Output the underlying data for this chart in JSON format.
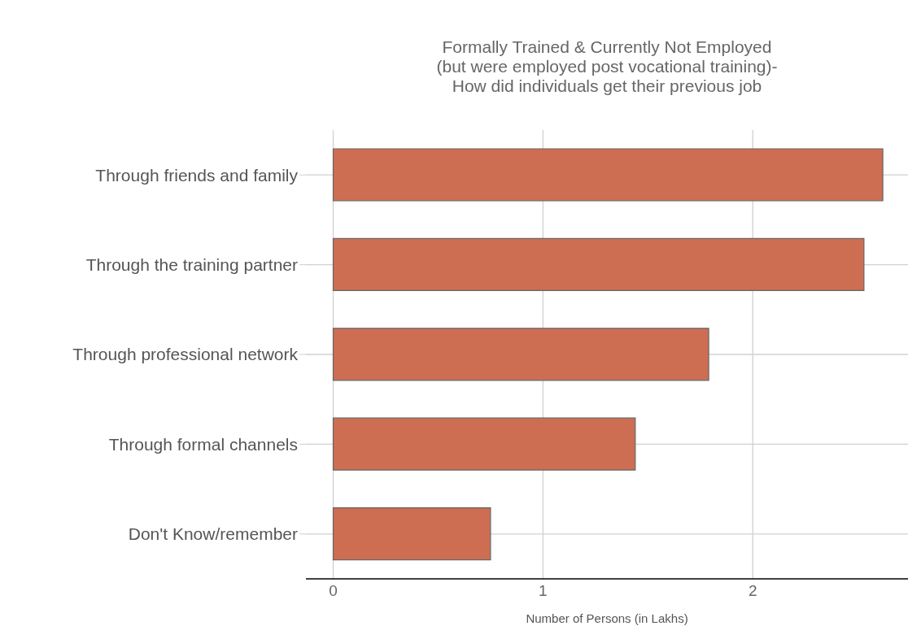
{
  "chart_data": {
    "type": "bar",
    "orientation": "horizontal",
    "title": "Formally Trained & Currently Not Employed\n(but were employed post vocational training)-\nHow did individuals get their previous job",
    "xlabel": "Number of Persons (in Lakhs)",
    "categories": [
      "Through friends and family",
      "Through the training partner",
      "Through professional network",
      "Through formal channels",
      "Don't Know/remember"
    ],
    "values": [
      2.62,
      2.53,
      1.79,
      1.44,
      0.75
    ],
    "color": "#cd6e53",
    "xlim": [
      -0.13,
      2.74
    ],
    "xticks": [
      0,
      1,
      2
    ],
    "grid": true
  }
}
